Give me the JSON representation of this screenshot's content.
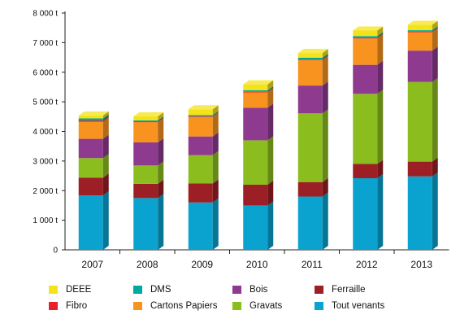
{
  "chart_data": {
    "type": "bar",
    "stacked": true,
    "three_d": true,
    "title": "",
    "xlabel": "",
    "ylabel": "",
    "ylim": [
      0,
      8000
    ],
    "y_ticks": [
      "0",
      "1 000 t",
      "2 000 t",
      "3 000 t",
      "4 000 t",
      "5 000 t",
      "6 000 t",
      "7 000 t",
      "8 000 t"
    ],
    "categories": [
      "2007",
      "2008",
      "2009",
      "2010",
      "2011",
      "2012",
      "2013"
    ],
    "series": [
      {
        "name": "Tout venants",
        "color": "#0aa3cf",
        "values": [
          1840,
          1750,
          1600,
          1500,
          1800,
          2420,
          2480
        ]
      },
      {
        "name": "Ferraille",
        "color": "#9b1f24",
        "values": [
          600,
          480,
          640,
          700,
          490,
          480,
          500
        ]
      },
      {
        "name": "Gravats",
        "color": "#8cbd1f",
        "values": [
          660,
          620,
          960,
          1500,
          2320,
          2370,
          2690
        ]
      },
      {
        "name": "Bois",
        "color": "#8e3a8f",
        "values": [
          650,
          780,
          630,
          1100,
          940,
          980,
          1060
        ]
      },
      {
        "name": "Cartons Papiers",
        "color": "#f7931e",
        "values": [
          580,
          680,
          660,
          520,
          860,
          890,
          620
        ]
      },
      {
        "name": "Fibro",
        "color": "#e8202a",
        "values": [
          40,
          20,
          20,
          20,
          20,
          20,
          20
        ]
      },
      {
        "name": "DMS",
        "color": "#00a99d",
        "values": [
          70,
          40,
          40,
          50,
          60,
          60,
          50
        ]
      },
      {
        "name": "DEEE",
        "color": "#f4e31a",
        "values": [
          100,
          140,
          200,
          200,
          160,
          190,
          180
        ]
      }
    ],
    "legend": {
      "placement": "bottom",
      "order": [
        "DEEE",
        "DMS",
        "Bois",
        "Ferraille",
        "Fibro",
        "Cartons Papiers",
        "Gravats",
        "Tout venants"
      ]
    },
    "grid": false
  }
}
